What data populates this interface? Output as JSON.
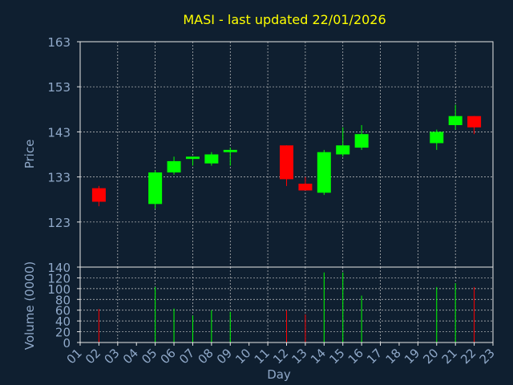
{
  "title": "MASI - last updated 22/01/2026",
  "colors": {
    "background": "#0f1f30",
    "title": "#ffff00",
    "axis_text": "#8fa8c8",
    "frame": "#e8e8e8",
    "grid": "#c8c8c8",
    "up": "#00ff00",
    "down": "#ff0000"
  },
  "chart_data": [
    {
      "type": "candlestick",
      "ylabel": "Price",
      "ylim": [
        113,
        163
      ],
      "yticks": [
        123,
        133,
        143,
        153,
        163
      ],
      "x_range": [
        1,
        23
      ],
      "grid": true,
      "candles": [
        {
          "day": 2,
          "open": 130.5,
          "high": 131.0,
          "low": 126.5,
          "close": 127.5
        },
        {
          "day": 5,
          "open": 127.0,
          "high": 134.5,
          "low": 126.0,
          "close": 134.0
        },
        {
          "day": 6,
          "open": 134.0,
          "high": 137.5,
          "low": 133.5,
          "close": 136.5
        },
        {
          "day": 7,
          "open": 137.0,
          "high": 137.5,
          "low": 135.5,
          "close": 137.5
        },
        {
          "day": 8,
          "open": 136.0,
          "high": 138.5,
          "low": 135.5,
          "close": 138.0
        },
        {
          "day": 9,
          "open": 138.5,
          "high": 139.5,
          "low": 135.5,
          "close": 139.0
        },
        {
          "day": 12,
          "open": 140.0,
          "high": 140.0,
          "low": 131.0,
          "close": 132.5
        },
        {
          "day": 13,
          "open": 131.5,
          "high": 133.0,
          "low": 130.0,
          "close": 130.0
        },
        {
          "day": 14,
          "open": 129.5,
          "high": 139.0,
          "low": 129.0,
          "close": 138.5
        },
        {
          "day": 15,
          "open": 138.0,
          "high": 144.0,
          "low": 137.5,
          "close": 140.0
        },
        {
          "day": 16,
          "open": 139.5,
          "high": 144.5,
          "low": 139.0,
          "close": 142.5
        },
        {
          "day": 20,
          "open": 140.5,
          "high": 143.5,
          "low": 139.0,
          "close": 143.0
        },
        {
          "day": 21,
          "open": 144.5,
          "high": 149.0,
          "low": 143.5,
          "close": 146.5
        },
        {
          "day": 22,
          "open": 146.5,
          "high": 146.5,
          "low": 142.5,
          "close": 144.0
        }
      ]
    },
    {
      "type": "bar",
      "ylabel": "Volume (0000)",
      "xlabel": "Day",
      "ylim": [
        0,
        140
      ],
      "yticks": [
        0,
        20,
        40,
        60,
        80,
        100,
        120,
        140
      ],
      "x_range": [
        1,
        23
      ],
      "xtick_labels": [
        "01",
        "02",
        "03",
        "04",
        "05",
        "06",
        "07",
        "08",
        "09",
        "10",
        "11",
        "12",
        "13",
        "14",
        "15",
        "16",
        "17",
        "18",
        "19",
        "20",
        "21",
        "22",
        "23"
      ],
      "grid": true,
      "bars": [
        {
          "day": 2,
          "volume": 62,
          "direction": "down"
        },
        {
          "day": 5,
          "volume": 103,
          "direction": "up"
        },
        {
          "day": 6,
          "volume": 63,
          "direction": "up"
        },
        {
          "day": 7,
          "volume": 50,
          "direction": "up"
        },
        {
          "day": 8,
          "volume": 60,
          "direction": "up"
        },
        {
          "day": 9,
          "volume": 57,
          "direction": "up"
        },
        {
          "day": 12,
          "volume": 60,
          "direction": "down"
        },
        {
          "day": 13,
          "volume": 52,
          "direction": "down"
        },
        {
          "day": 14,
          "volume": 130,
          "direction": "up"
        },
        {
          "day": 15,
          "volume": 130,
          "direction": "up"
        },
        {
          "day": 16,
          "volume": 87,
          "direction": "up"
        },
        {
          "day": 20,
          "volume": 103,
          "direction": "up"
        },
        {
          "day": 21,
          "volume": 110,
          "direction": "up"
        },
        {
          "day": 22,
          "volume": 103,
          "direction": "down"
        }
      ]
    }
  ]
}
